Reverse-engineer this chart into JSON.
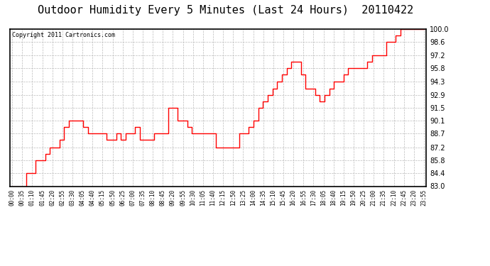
{
  "title": "Outdoor Humidity Every 5 Minutes (Last 24 Hours)  20110422",
  "copyright_text": "Copyright 2011 Cartronics.com",
  "ylim": [
    83.0,
    100.0
  ],
  "yticks": [
    83.0,
    84.4,
    85.8,
    87.2,
    88.7,
    90.1,
    91.5,
    92.9,
    94.3,
    95.8,
    97.2,
    98.6,
    100.0
  ],
  "line_color": "#ff0000",
  "bg_color": "#ffffff",
  "grid_color": "#bbbbbb",
  "title_fontsize": 11,
  "x_labels": [
    "00:00",
    "00:35",
    "01:10",
    "01:45",
    "02:20",
    "02:55",
    "03:30",
    "04:05",
    "04:40",
    "05:15",
    "05:50",
    "06:25",
    "07:00",
    "07:35",
    "08:10",
    "08:45",
    "09:20",
    "09:55",
    "10:30",
    "11:05",
    "11:40",
    "12:15",
    "12:50",
    "13:25",
    "14:00",
    "14:35",
    "15:10",
    "15:45",
    "16:20",
    "16:55",
    "17:30",
    "18:05",
    "18:40",
    "19:15",
    "19:50",
    "20:25",
    "21:00",
    "21:35",
    "22:10",
    "22:45",
    "23:20",
    "23:55"
  ],
  "humidity_data": [
    83.0,
    83.0,
    83.0,
    84.4,
    84.4,
    85.8,
    85.8,
    86.5,
    87.2,
    87.2,
    88.0,
    89.4,
    90.1,
    90.1,
    90.1,
    89.4,
    88.7,
    88.7,
    88.7,
    88.7,
    88.0,
    88.0,
    88.7,
    88.0,
    88.7,
    88.7,
    89.4,
    88.0,
    88.0,
    88.0,
    88.7,
    88.7,
    88.7,
    91.5,
    91.5,
    90.1,
    90.1,
    89.4,
    88.7,
    88.7,
    88.7,
    88.7,
    88.7,
    87.2,
    87.2,
    87.2,
    87.2,
    87.2,
    88.7,
    88.7,
    89.4,
    90.1,
    91.5,
    92.2,
    92.9,
    93.6,
    94.3,
    95.1,
    95.8,
    96.5,
    96.5,
    95.1,
    93.6,
    93.6,
    92.9,
    92.2,
    92.9,
    93.6,
    94.3,
    94.3,
    95.1,
    95.8,
    95.8,
    95.8,
    95.8,
    96.5,
    97.2,
    97.2,
    97.2,
    98.6,
    98.6,
    99.3,
    100.0,
    100.0,
    100.0,
    100.0,
    100.0,
    100.0
  ]
}
